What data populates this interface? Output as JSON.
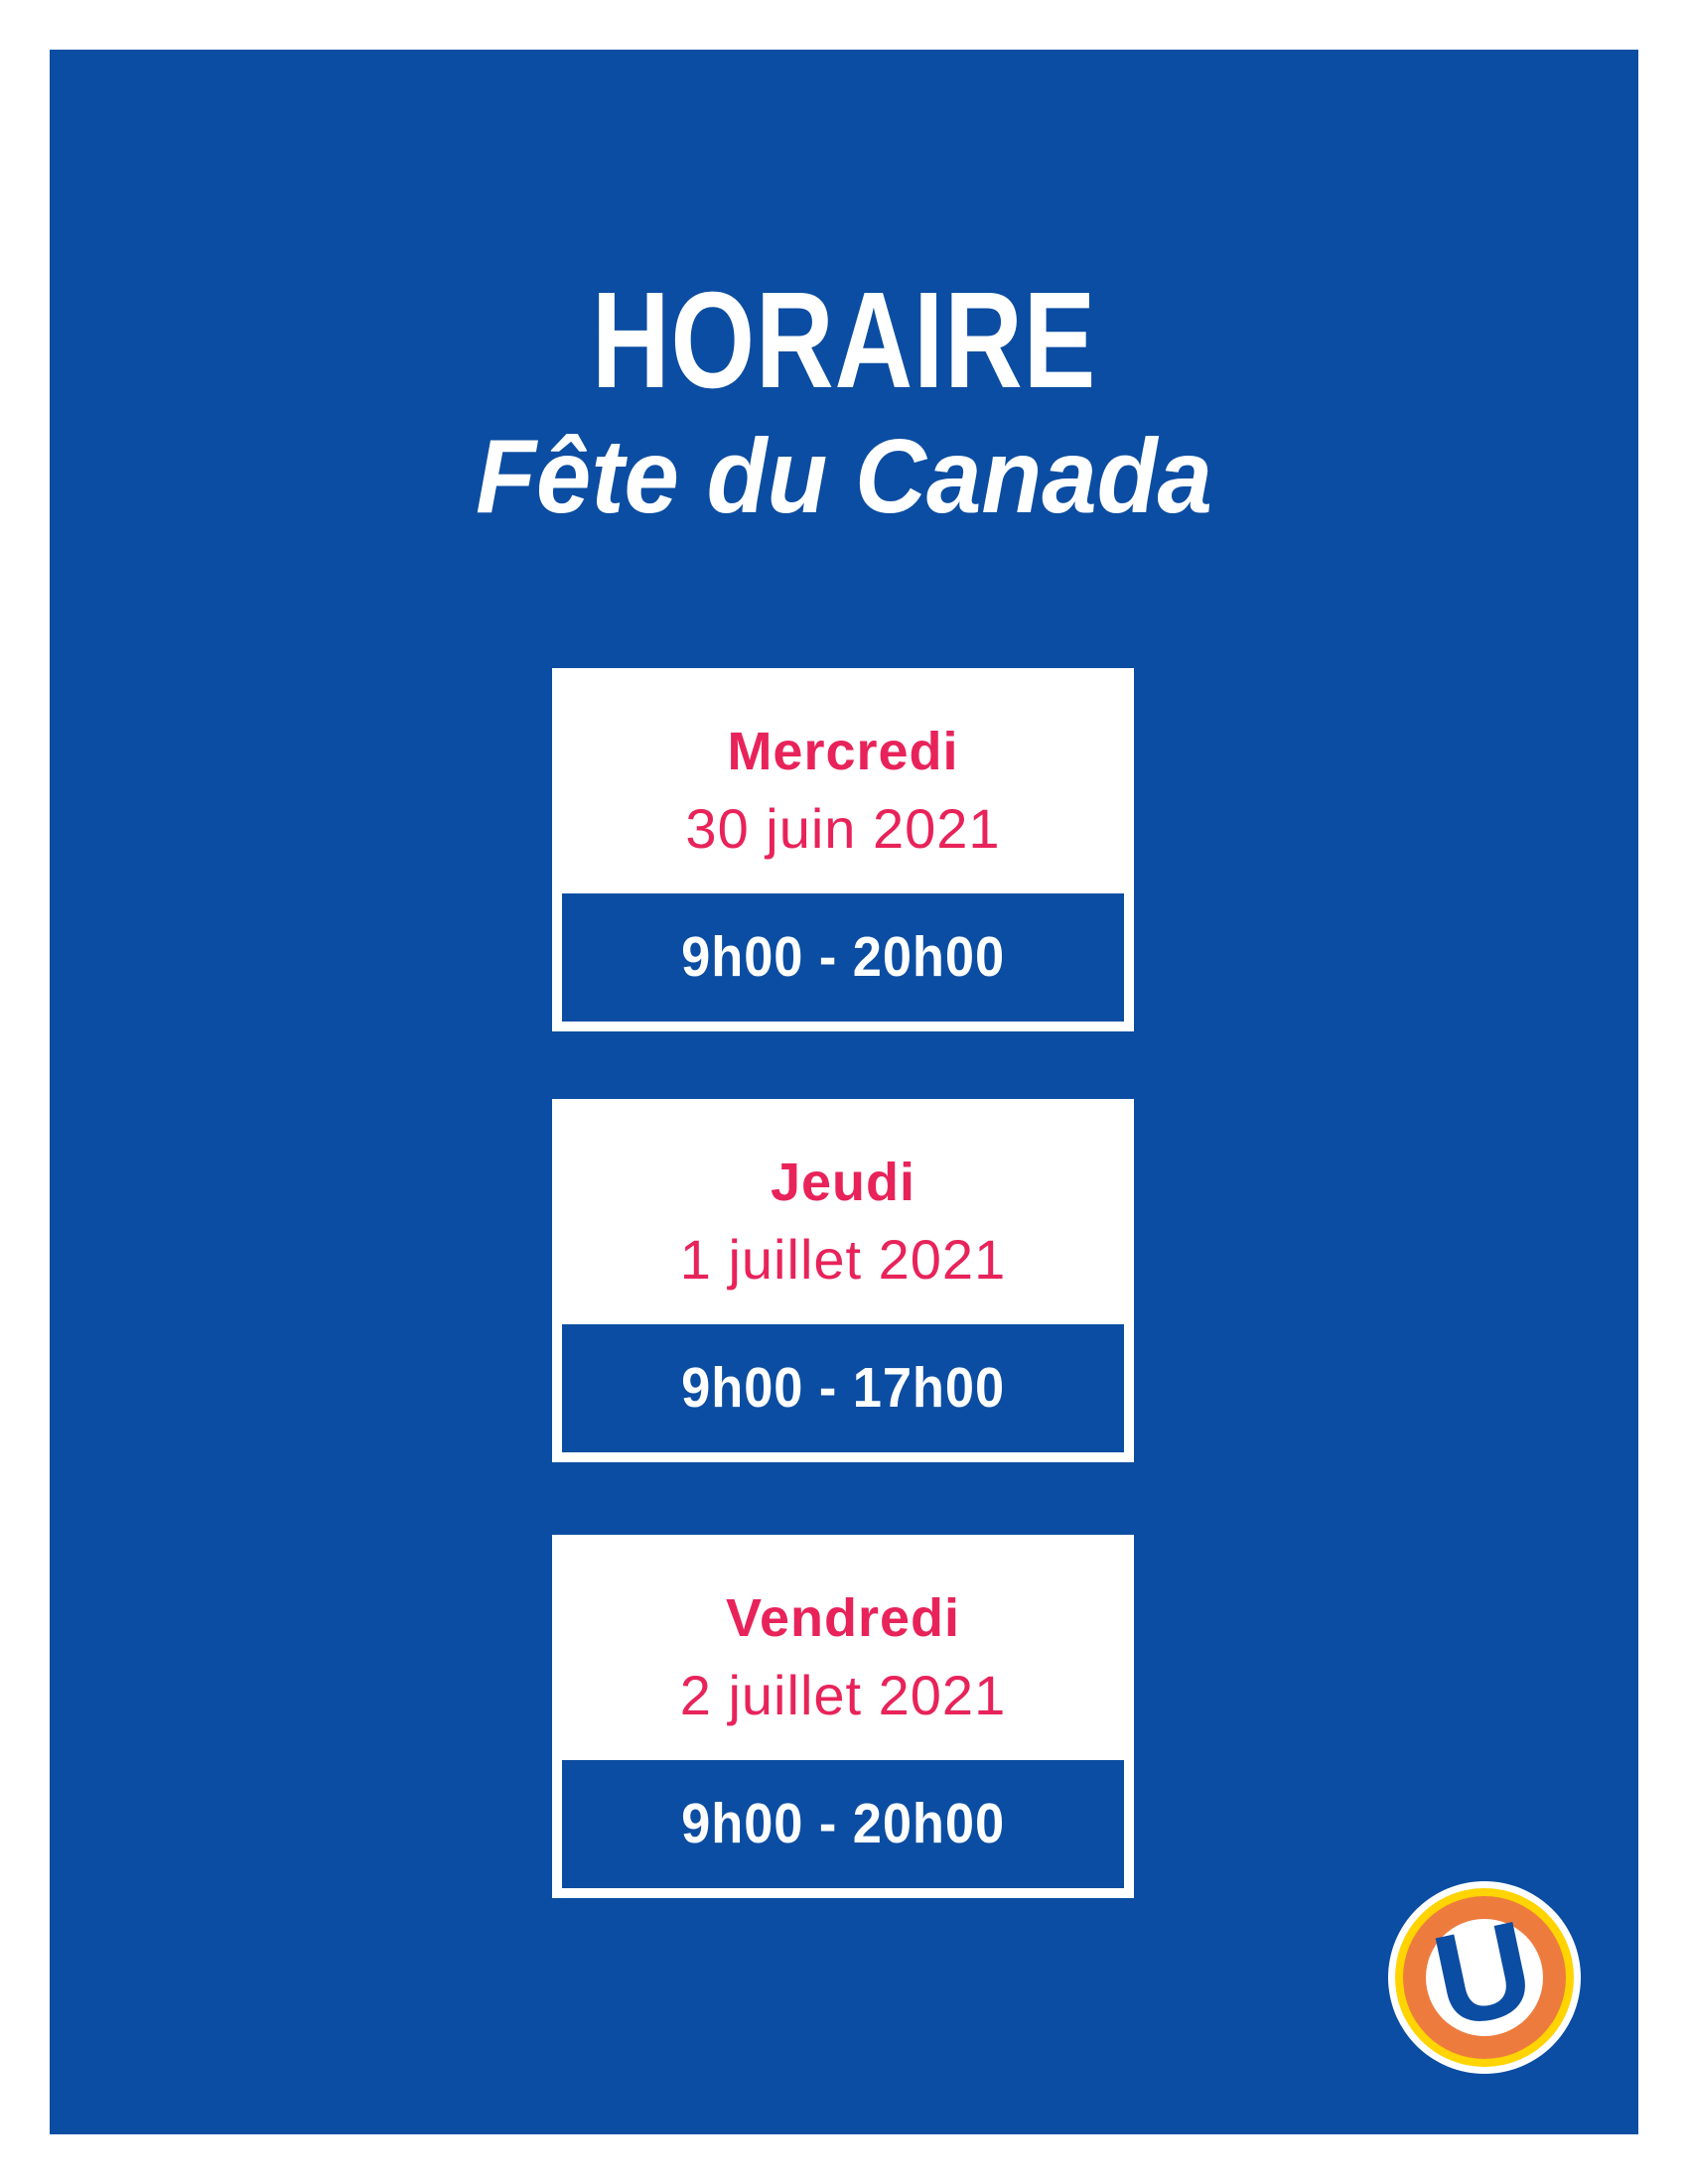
{
  "poster": {
    "title": "HORAIRE",
    "subtitle": "Fête du Canada",
    "cards": [
      {
        "day": "Mercredi",
        "date": "30 juin 2021",
        "hours": "9h00 - 20h00"
      },
      {
        "day": "Jeudi",
        "date": "1 juillet 2021",
        "hours": "9h00 - 17h00"
      },
      {
        "day": "Vendredi",
        "date": "2 juillet 2021",
        "hours": "9h00 - 20h00"
      }
    ],
    "logo": {
      "letter": "U"
    },
    "colors": {
      "blue": "#0B4DA2",
      "pink": "#E8235A",
      "yellow": "#FFD400",
      "orange": "#EE7B3E",
      "white": "#FFFFFF"
    }
  }
}
